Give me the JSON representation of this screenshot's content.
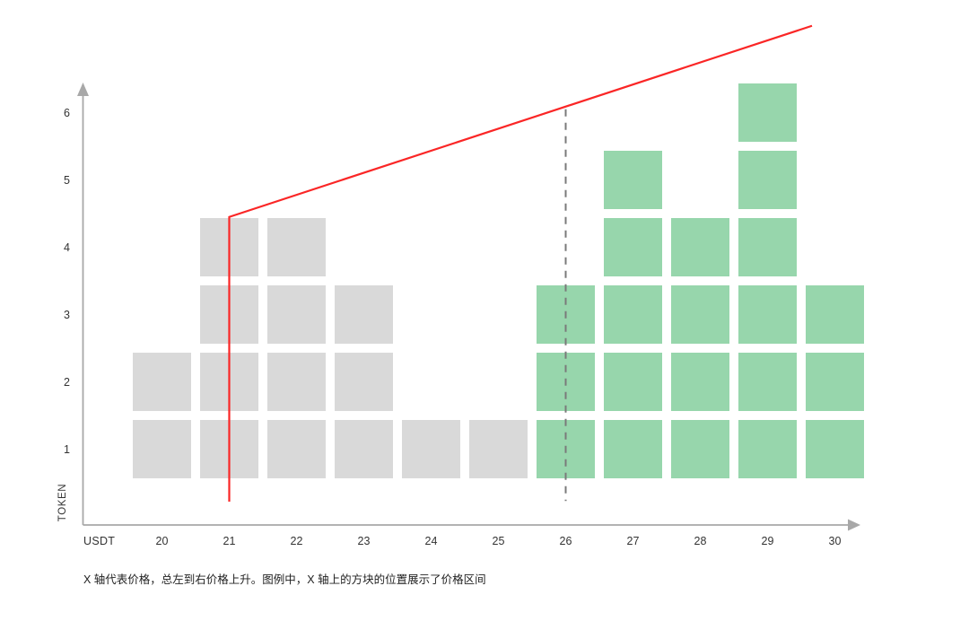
{
  "colors": {
    "background": "#ffffff",
    "axis": "#a8a8a8",
    "tick_text": "#333333",
    "caption_text": "#222222",
    "gray_bin": "#d9d9d9",
    "green_bin": "#97d6ac",
    "price_curve": "#fa2626",
    "dashed_line": "#7a7a7a"
  },
  "chart_data": {
    "type": "bar",
    "title": "",
    "xlabel": "USDT",
    "ylabel": "TOKEN",
    "grid": false,
    "legend": false,
    "x_axis": {
      "label": "USDT",
      "ticks": [
        20,
        21,
        22,
        23,
        24,
        25,
        26,
        27,
        28,
        29,
        30
      ]
    },
    "y_axis": {
      "label": "TOKEN",
      "ticks": [
        1,
        2,
        3,
        4,
        5,
        6
      ],
      "ylim": [
        0,
        6
      ]
    },
    "categories": [
      20,
      21,
      22,
      23,
      24,
      25,
      26,
      27,
      28,
      29,
      30
    ],
    "values": [
      2,
      4,
      4,
      3,
      1,
      1,
      3,
      5,
      4,
      6,
      3
    ],
    "series": [
      {
        "name": "gray-bins",
        "color": "#d9d9d9",
        "categories": [
          20,
          21,
          22,
          23,
          24,
          25
        ],
        "values": [
          2,
          4,
          4,
          3,
          1,
          1
        ]
      },
      {
        "name": "green-bins",
        "color": "#97d6ac",
        "categories": [
          26,
          27,
          28,
          29,
          30
        ],
        "values": [
          3,
          5,
          4,
          6,
          3
        ]
      }
    ],
    "annotations": {
      "price_curve": {
        "color": "#fa2626",
        "points": [
          {
            "x": 21,
            "y": 0.22
          },
          {
            "x": 21,
            "y": 4.45
          },
          {
            "x": 29.66,
            "y": 7.29
          }
        ]
      },
      "dashed_vertical_line": {
        "x": 26,
        "y_from": 0.23,
        "y_to": 6.05,
        "color": "#7a7a7a"
      }
    },
    "caption": "X 轴代表价格，总左到右价格上升。图例中，X 轴上的方块的位置展示了价格区间"
  }
}
